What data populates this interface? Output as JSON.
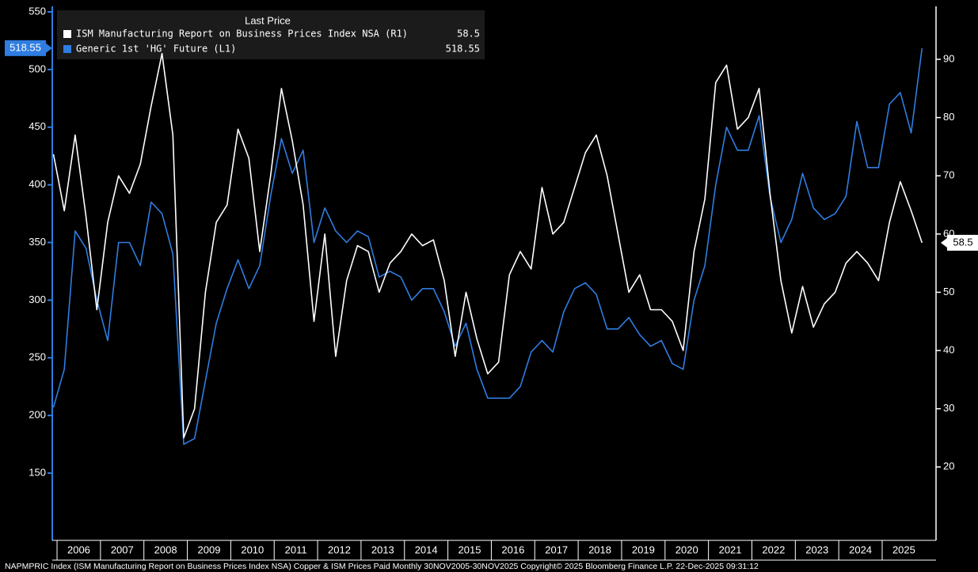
{
  "chart_data": {
    "type": "line",
    "legend_title": "Last Price",
    "legend": "upper left",
    "footer": "NAPMPRIC Index (ISM Manufacturing Report on Business Prices Index NSA) Copper & ISM Prices Paid Monthly 30NOV2005-30NOV2025  Copyright© 2025 Bloomberg Finance L.P.  22-Dec-2025 09:31:12",
    "x": [
      2005.917,
      2006.167,
      2006.417,
      2006.667,
      2006.917,
      2007.167,
      2007.417,
      2007.667,
      2007.917,
      2008.167,
      2008.417,
      2008.667,
      2008.917,
      2009.167,
      2009.417,
      2009.667,
      2009.917,
      2010.167,
      2010.417,
      2010.667,
      2010.917,
      2011.167,
      2011.417,
      2011.667,
      2011.917,
      2012.167,
      2012.417,
      2012.667,
      2012.917,
      2013.167,
      2013.417,
      2013.667,
      2013.917,
      2014.167,
      2014.417,
      2014.667,
      2014.917,
      2015.167,
      2015.417,
      2015.667,
      2015.917,
      2016.167,
      2016.417,
      2016.667,
      2016.917,
      2017.167,
      2017.417,
      2017.667,
      2017.917,
      2018.167,
      2018.417,
      2018.667,
      2018.917,
      2019.167,
      2019.417,
      2019.667,
      2019.917,
      2020.167,
      2020.417,
      2020.667,
      2020.917,
      2021.167,
      2021.417,
      2021.667,
      2021.917,
      2022.167,
      2022.417,
      2022.667,
      2022.917,
      2023.167,
      2023.417,
      2023.667,
      2023.917,
      2024.167,
      2024.417,
      2024.667,
      2024.917,
      2025.167,
      2025.417,
      2025.667,
      2025.917
    ],
    "xlim": [
      2005.89,
      2026.24
    ],
    "xticks": [
      2006,
      2007,
      2008,
      2009,
      2010,
      2011,
      2012,
      2013,
      2014,
      2015,
      2016,
      2017,
      2018,
      2019,
      2020,
      2021,
      2022,
      2023,
      2024,
      2025
    ],
    "ylim": [
      91.7,
      554.8
    ],
    "yticks": [
      150,
      200,
      250,
      300,
      350,
      400,
      450,
      500,
      550
    ],
    "y2lim": [
      7.4,
      99.1
    ],
    "y2ticks": [
      20,
      30,
      40,
      50,
      60,
      70,
      80,
      90
    ],
    "series": [
      {
        "name": "ISM Manufacturing Report on Business Prices Index NSA (R1)",
        "color": "#ffffff",
        "axis": "y2",
        "last_price": "58.5",
        "values": [
          73.7,
          64,
          77,
          63,
          47,
          62,
          70,
          67,
          72,
          82,
          91,
          77,
          25,
          30,
          50,
          62,
          65,
          78,
          73,
          57,
          70,
          85,
          76,
          65,
          45,
          60,
          39,
          52,
          58,
          57,
          50,
          55,
          57,
          60,
          58,
          59,
          52,
          39,
          50,
          42,
          36,
          38,
          53,
          57,
          54,
          68,
          60,
          62,
          68,
          74,
          77,
          70,
          60,
          50,
          53,
          47,
          47,
          45,
          40,
          57,
          66,
          86,
          89,
          78,
          80,
          85,
          67,
          52,
          43,
          51,
          44,
          48,
          50,
          55,
          57,
          55,
          52,
          62,
          69,
          64,
          58.5
        ]
      },
      {
        "name": "Generic 1st 'HG' Future (L1)",
        "color": "#2f7de1",
        "axis": "y",
        "last_price": "518.55",
        "values": [
          207,
          240,
          360,
          345,
          300,
          265,
          350,
          350,
          330,
          385,
          375,
          340,
          175,
          180,
          230,
          280,
          310,
          335,
          310,
          330,
          390,
          440,
          410,
          430,
          350,
          380,
          360,
          350,
          360,
          355,
          320,
          325,
          320,
          300,
          310,
          310,
          290,
          260,
          280,
          240,
          215,
          215,
          215,
          225,
          255,
          265,
          255,
          290,
          310,
          315,
          305,
          275,
          275,
          285,
          270,
          260,
          265,
          245,
          240,
          300,
          330,
          400,
          450,
          430,
          430,
          460,
          390,
          350,
          370,
          410,
          380,
          370,
          375,
          390,
          455,
          415,
          415,
          470,
          480,
          445,
          518.55
        ]
      }
    ]
  }
}
